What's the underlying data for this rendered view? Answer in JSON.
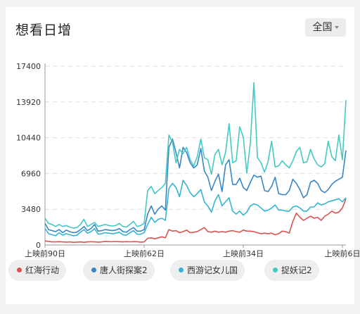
{
  "header": {
    "title": "想看日增",
    "region_label": "全国"
  },
  "colors": {
    "红海行动": "#d9534f",
    "唐人街探案2": "#3a86c4",
    "西游记女儿国": "#35b3d4",
    "捉妖记2": "#45c9c2",
    "grid": "#dddddd",
    "axis": "#999999"
  },
  "chart_data": {
    "type": "line",
    "title": "想看日增",
    "ylim": [
      0,
      17400
    ],
    "yticks": [
      0,
      3480,
      6960,
      10440,
      13920,
      17400
    ],
    "ytick_labels": [
      "0",
      "3480",
      "6960",
      "10440",
      "13920",
      "17400"
    ],
    "xtick_labels": [
      "上映前90日",
      "上映前62日",
      "上映前34日",
      "上映前6日"
    ],
    "xticks": [
      -90,
      -62,
      -34,
      -6
    ],
    "xlim": [
      -90,
      -5
    ],
    "grid": true,
    "legend": "bottom",
    "x": [
      -90,
      -89,
      -88,
      -87,
      -86,
      -85,
      -84,
      -83,
      -82,
      -81,
      -80,
      -79,
      -78,
      -77,
      -76,
      -75,
      -74,
      -73,
      -72,
      -71,
      -70,
      -69,
      -68,
      -67,
      -66,
      -65,
      -64,
      -63,
      -62,
      -61,
      -60,
      -59,
      -58,
      -57,
      -56,
      -55,
      -54,
      -53,
      -52,
      -51,
      -50,
      -49,
      -48,
      -47,
      -46,
      -45,
      -44,
      -43,
      -42,
      -41,
      -40,
      -39,
      -38,
      -37,
      -36,
      -35,
      -34,
      -33,
      -32,
      -31,
      -30,
      -29,
      -28,
      -27,
      -26,
      -25,
      -24,
      -23,
      -22,
      -21,
      -20,
      -19,
      -18,
      -17,
      -16,
      -15,
      -14,
      -13,
      -12,
      -11,
      -10,
      -9,
      -8,
      -7,
      -6,
      -5
    ],
    "series": [
      {
        "name": "红海行动",
        "values": [
          400,
          350,
          300,
          300,
          320,
          300,
          280,
          300,
          260,
          280,
          300,
          260,
          300,
          320,
          300,
          280,
          300,
          350,
          330,
          320,
          340,
          320,
          300,
          330,
          310,
          330,
          320,
          280,
          300,
          650,
          700,
          600,
          700,
          800,
          700,
          1500,
          1350,
          1400,
          1200,
          1300,
          1450,
          1200,
          1250,
          1300,
          1500,
          1700,
          1300,
          1250,
          1350,
          1250,
          1300,
          1250,
          1350,
          1400,
          1300,
          1250,
          1450,
          1350,
          1350,
          1300,
          1200,
          1100,
          1150,
          1100,
          1150,
          1000,
          1100,
          1350,
          1300,
          1150,
          2300,
          3100,
          2700,
          2400,
          2600,
          2800,
          2600,
          2700,
          2400,
          2800,
          3000,
          3300,
          3100,
          3200,
          3600,
          4500
        ]
      },
      {
        "name": "唐人街探案2",
        "values": [
          2100,
          1500,
          1400,
          1300,
          1500,
          1200,
          1450,
          1300,
          1200,
          1250,
          1500,
          1800,
          1400,
          1600,
          2000,
          1350,
          1400,
          1500,
          1450,
          1400,
          1450,
          1600,
          1300,
          1250,
          1500,
          1700,
          1350,
          1350,
          1500,
          3000,
          3800,
          3000,
          3500,
          3800,
          3400,
          9500,
          10300,
          9000,
          7500,
          9500,
          9000,
          8000,
          7500,
          7800,
          9400,
          7200,
          6600,
          5300,
          6200,
          6900,
          5200,
          7800,
          8300,
          5900,
          5900,
          6500,
          5600,
          5300,
          6100,
          6800,
          6600,
          6700,
          5300,
          5200,
          5700,
          6600,
          5000,
          4900,
          4900,
          5300,
          6400,
          6000,
          5400,
          4600,
          4900,
          6100,
          6300,
          6000,
          5300,
          5100,
          5400,
          5900,
          6200,
          6400,
          6600,
          9200
        ]
      },
      {
        "name": "西游记女儿国",
        "values": [
          1600,
          1100,
          1000,
          900,
          1200,
          950,
          1100,
          1000,
          900,
          950,
          1250,
          1500,
          1150,
          1300,
          1600,
          1050,
          1100,
          1200,
          1150,
          1100,
          1150,
          1250,
          1000,
          950,
          1200,
          1400,
          1050,
          1050,
          1200,
          2000,
          2700,
          2200,
          2500,
          2600,
          2400,
          5500,
          6000,
          5600,
          4700,
          6300,
          5800,
          5100,
          4700,
          5000,
          5400,
          4200,
          3800,
          3200,
          4300,
          4900,
          3800,
          4200,
          4600,
          3300,
          3000,
          3300,
          2900,
          3200,
          3800,
          4000,
          3900,
          3600,
          3300,
          3400,
          3600,
          3900,
          3400,
          3400,
          3300,
          3300,
          3700,
          3800,
          3600,
          3300,
          3300,
          3700,
          3700,
          4100,
          3900,
          4000,
          4200,
          4300,
          4400,
          4500,
          4200,
          4600
        ]
      },
      {
        "name": "捉妖记2",
        "values": [
          2600,
          2100,
          2000,
          1800,
          2000,
          1800,
          1900,
          1750,
          1650,
          1700,
          2000,
          2500,
          1800,
          2000,
          2200,
          1800,
          1900,
          2000,
          1900,
          1850,
          1900,
          2100,
          1800,
          1750,
          2000,
          2300,
          1800,
          1900,
          2100,
          5300,
          5700,
          5000,
          5300,
          5600,
          6000,
          10700,
          10000,
          8000,
          9300,
          8900,
          9500,
          8300,
          7700,
          8600,
          10300,
          8500,
          8300,
          6900,
          8800,
          9300,
          7800,
          9000,
          11800,
          8000,
          8200,
          11500,
          10500,
          7000,
          9900,
          15800,
          8500,
          8000,
          7100,
          8100,
          10100,
          7600,
          7700,
          8200,
          7800,
          7500,
          8200,
          9100,
          9500,
          8000,
          8100,
          9300,
          8400,
          7800,
          7600,
          7900,
          10100,
          8600,
          8200,
          10700,
          8300,
          14100
        ]
      }
    ]
  },
  "legend_items": [
    {
      "label": "红海行动",
      "color": "#d9534f"
    },
    {
      "label": "唐人街探案2",
      "color": "#3a86c4"
    },
    {
      "label": "西游记女儿国",
      "color": "#35b3d4"
    },
    {
      "label": "捉妖记2",
      "color": "#45c9c2"
    }
  ]
}
